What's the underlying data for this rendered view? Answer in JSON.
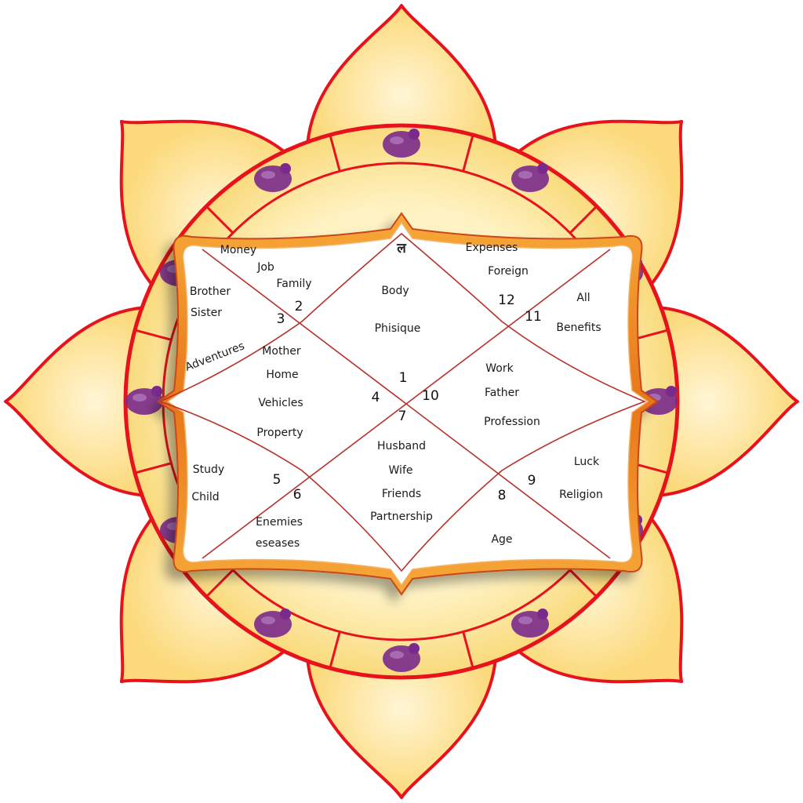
{
  "colors": {
    "petal_fill": "#fde9a8",
    "petal_stroke": "#e8121c",
    "ring_fill": "#fbe39b",
    "zodiac_purple": "#7a2a8c",
    "frame_orange": "#f08a1c",
    "chart_line": "#b8312a",
    "panel_fill": "#ffffff"
  },
  "zodiac_icons": [
    "aries-ram-icon",
    "taurus-bull-icon",
    "pisces-fish-icon",
    "gemini-twins-icon",
    "cancer-crab-icon",
    "aquarius-water-bearer-icon",
    "leo-lion-icon",
    "capricorn-goat-icon",
    "virgo-maiden-icon",
    "libra-scales-icon",
    "scorpio-scorpion-icon",
    "sagittarius-archer-icon"
  ],
  "chart": {
    "lagna_glyph": "ल",
    "houses": [
      {
        "number": "1",
        "labels": [
          "Body",
          "Phisique"
        ]
      },
      {
        "number": "2",
        "labels": [
          "Money",
          "Job",
          "Family"
        ]
      },
      {
        "number": "3",
        "labels": [
          "Brother",
          "Sister",
          "Adventures"
        ]
      },
      {
        "number": "4",
        "labels": [
          "Mother",
          "Home",
          "Vehicles",
          "Property"
        ]
      },
      {
        "number": "5",
        "labels": [
          "Study",
          "Child"
        ]
      },
      {
        "number": "6",
        "labels": [
          "Enemies",
          "eseases"
        ]
      },
      {
        "number": "7",
        "labels": [
          "Husband",
          "Wife",
          "Friends",
          "Partnership"
        ]
      },
      {
        "number": "8",
        "labels": [
          "Age"
        ]
      },
      {
        "number": "9",
        "labels": [
          "Luck",
          "Religion"
        ]
      },
      {
        "number": "10",
        "labels": [
          "Work",
          "Father",
          "Profession"
        ]
      },
      {
        "number": "11",
        "labels": [
          "All",
          "Benefits"
        ]
      },
      {
        "number": "12",
        "labels": [
          "Expenses",
          "Foreign"
        ]
      }
    ]
  }
}
